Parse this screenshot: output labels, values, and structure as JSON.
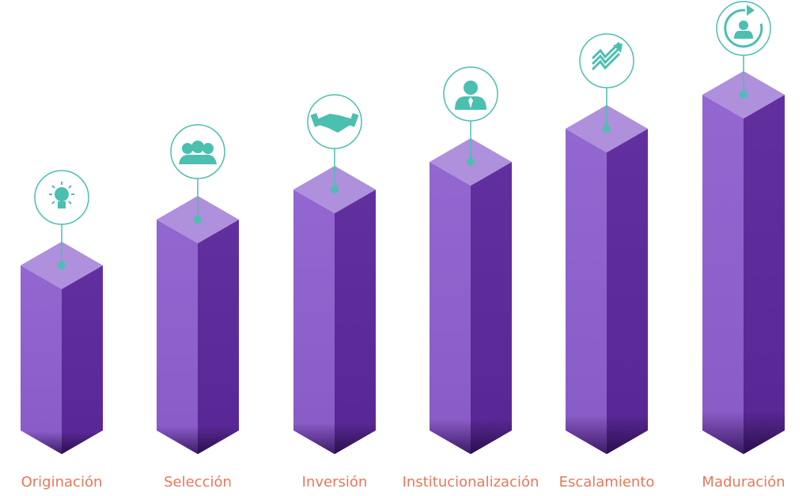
{
  "stages": [
    "Originación",
    "Selección",
    "Inversión",
    "Institucionalización",
    "Escalamiento",
    "Maduración"
  ]
}
